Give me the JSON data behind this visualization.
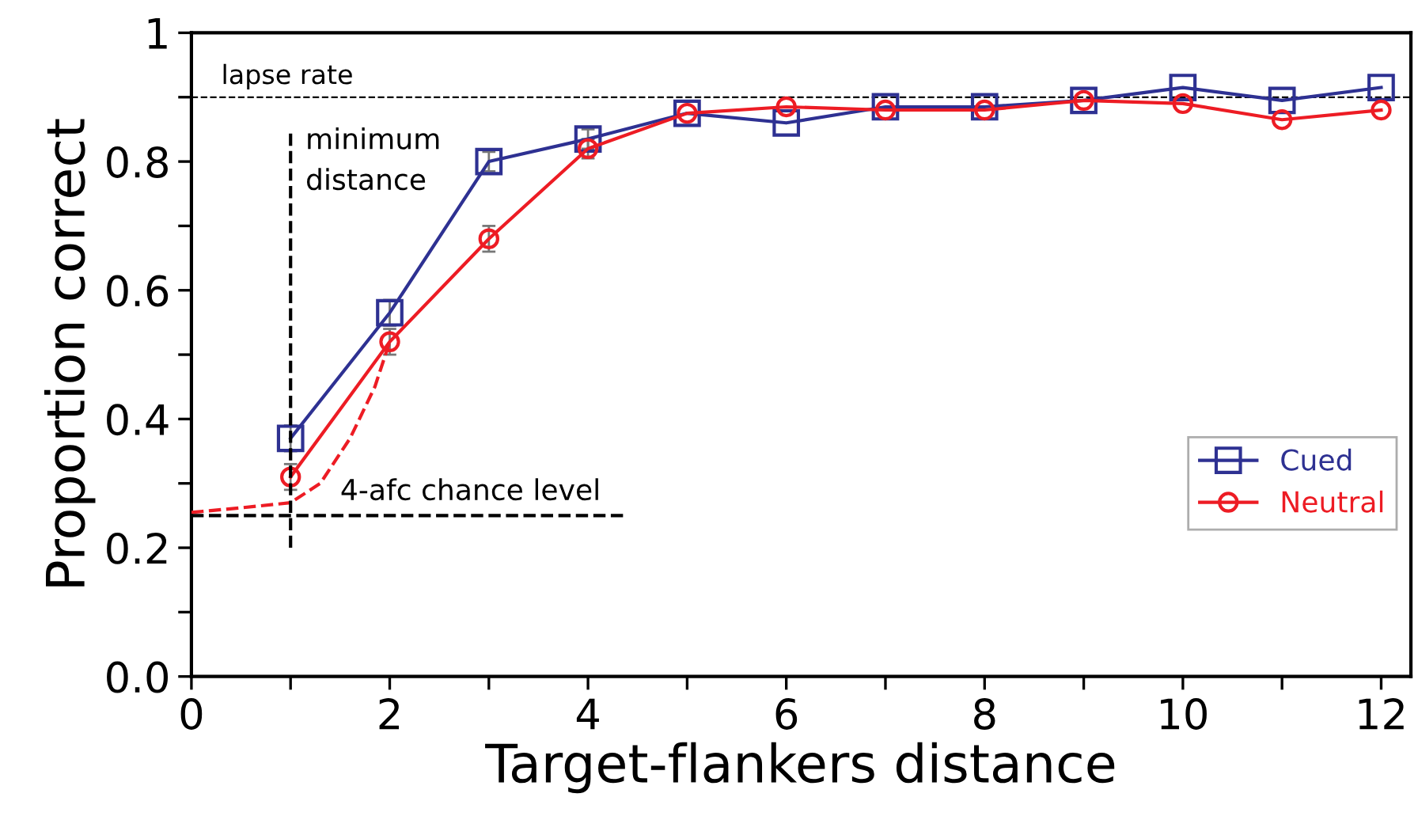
{
  "chart_data": {
    "type": "line",
    "xlabel": "Target-flankers distance",
    "ylabel": "Proportion correct",
    "x": [
      1,
      2,
      3,
      4,
      5,
      6,
      7,
      8,
      9,
      10,
      11,
      12
    ],
    "series": [
      {
        "name": "Cued",
        "color": "#2e3192",
        "marker": "square",
        "values": [
          0.37,
          0.565,
          0.8,
          0.835,
          0.875,
          0.86,
          0.885,
          0.885,
          0.895,
          0.915,
          0.895,
          0.915
        ],
        "errors": [
          0.02,
          0.02,
          0.015,
          0.015,
          null,
          null,
          null,
          null,
          null,
          null,
          null,
          null
        ]
      },
      {
        "name": "Neutral",
        "color": "#ed1c24",
        "marker": "circle",
        "values": [
          0.31,
          0.52,
          0.68,
          0.82,
          0.875,
          0.885,
          0.88,
          0.88,
          0.895,
          0.89,
          0.865,
          0.88
        ],
        "errors": [
          0.02,
          0.02,
          0.02,
          0.015,
          null,
          null,
          null,
          null,
          null,
          null,
          null,
          null
        ]
      },
      {
        "color": "#ed1c24",
        "line_style": "dashed",
        "marker": "none",
        "x": [
          0,
          0.5,
          1,
          1.3,
          1.6,
          1.85,
          2
        ],
        "values": [
          0.255,
          0.262,
          0.27,
          0.3,
          0.37,
          0.45,
          0.52
        ]
      },
      {
        "color": "#000000",
        "line_style": "dashed",
        "marker": "none",
        "x": [
          1,
          1
        ],
        "values": [
          0.2,
          0.85
        ]
      },
      {
        "color": "#000000",
        "line_style": "dashed",
        "marker": "none",
        "x": [
          0,
          4.4
        ],
        "values": [
          0.25,
          0.25
        ]
      }
    ],
    "ref_lines": [
      {
        "axis": "y",
        "value": 0.9,
        "label": "lapse rate",
        "color": "#000000",
        "line_style": "dashed"
      }
    ],
    "annotations": [
      {
        "text": "minimum distance",
        "x": 1,
        "y": 0.8
      },
      {
        "text": "4-afc chance level",
        "x": 1,
        "y": 0.25
      }
    ],
    "xlim": [
      0,
      12.3
    ],
    "ylim": [
      0,
      1
    ],
    "xticks": [
      0,
      {
        "value": 1,
        "label": null
      },
      2,
      {
        "value": 3,
        "label": null
      },
      4,
      {
        "value": 5,
        "label": null
      },
      6,
      {
        "value": 7,
        "label": null
      },
      8,
      {
        "value": 9,
        "label": null
      },
      10,
      {
        "value": 11,
        "label": null
      },
      12
    ],
    "yticks": [
      {
        "value": 0,
        "label": "0.0"
      },
      {
        "value": 0.1,
        "label": null
      },
      0.2,
      {
        "value": 0.3,
        "label": null
      },
      0.4,
      {
        "value": 0.5,
        "label": null
      },
      0.6,
      {
        "value": 0.7,
        "label": null
      },
      0.8,
      {
        "value": 0.9,
        "label": null
      },
      1
    ],
    "grid": false,
    "legend": "right"
  }
}
